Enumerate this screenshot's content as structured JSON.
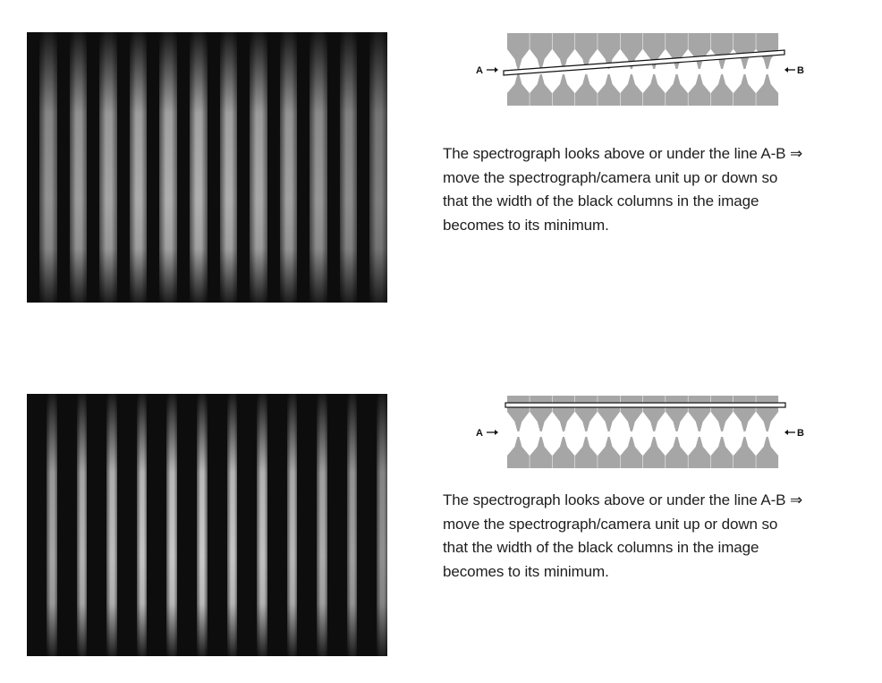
{
  "panels": [
    {
      "photo": {
        "columns_dark": 12
      },
      "diagram": {
        "label_a": "A",
        "label_b": "B",
        "line_state": "tilted"
      },
      "caption_lines": [
        "The spectrograph looks above or under the line A-B ⇒",
        "move the spectrograph/camera unit up or down so",
        "that the width of the black columns in the image",
        "becomes to its minimum."
      ]
    },
    {
      "photo": {
        "columns_dark": 12
      },
      "diagram": {
        "label_a": "A",
        "label_b": "B",
        "line_state": "level"
      },
      "caption_lines": [
        "The spectrograph looks above or under the line A-B ⇒",
        "move the spectrograph/camera unit up or down so",
        "that the width of the black columns in the image",
        "becomes to its minimum."
      ]
    }
  ],
  "colors": {
    "fiber_gray": "#a6a6a6",
    "text": "#1e1e1e"
  }
}
